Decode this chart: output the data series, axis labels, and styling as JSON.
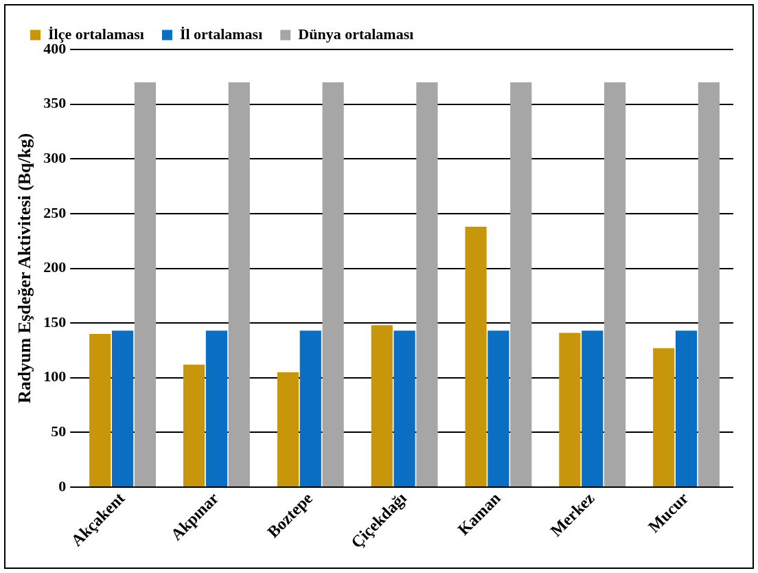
{
  "chart_data": {
    "type": "bar",
    "ylabel": "Radyum Eşdeğer Aktivitesi (Bq/kg)",
    "categories": [
      "Akçakent",
      "Akpınar",
      "Boztepe",
      "Çiçekdağı",
      "Kaman",
      "Merkez",
      "Mucur"
    ],
    "series": [
      {
        "name": "İlçe ortalaması",
        "color": "#c8960a",
        "values": [
          140,
          112,
          105,
          148,
          238,
          141,
          127
        ]
      },
      {
        "name": "İl ortalaması",
        "color": "#0a6fc2",
        "values": [
          143,
          143,
          143,
          143,
          143,
          143,
          143
        ]
      },
      {
        "name": "Dünya ortalaması",
        "color": "#a6a6a6",
        "values": [
          370,
          370,
          370,
          370,
          370,
          370,
          370
        ]
      }
    ],
    "ylim": [
      0,
      400
    ],
    "yticks": [
      0,
      50,
      100,
      150,
      200,
      250,
      300,
      350,
      400
    ],
    "grid": "y",
    "legend": "top"
  }
}
